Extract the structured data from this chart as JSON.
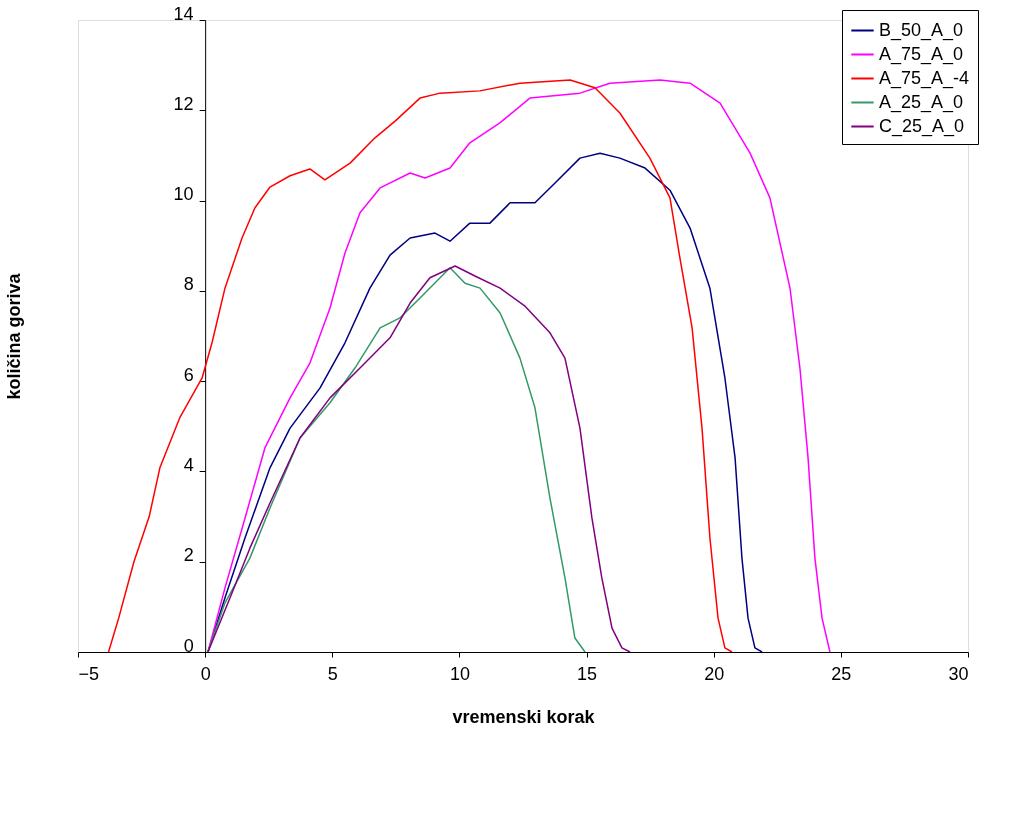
{
  "chart_data": {
    "type": "line",
    "xlabel": "vremenski korak",
    "ylabel": "količina goriva",
    "xlim": [
      -5,
      30
    ],
    "xticks": [
      -5,
      0,
      5,
      10,
      15,
      20,
      25,
      30
    ],
    "ylim": [
      0,
      14
    ],
    "yticks": [
      0,
      2,
      4,
      6,
      8,
      10,
      12,
      14
    ],
    "grid": false,
    "legend": "top right",
    "marker": "none",
    "line_style": "solid",
    "series": [
      {
        "name": "B_50_A_0",
        "color": "#000080",
        "x": [
          0.11,
          0.78,
          1.57,
          2.55,
          3.34,
          4.52,
          5.5,
          6.48,
          7.27,
          8.06,
          9.04,
          9.63,
          10.41,
          11.2,
          11.99,
          12.97,
          13.76,
          14.74,
          15.53,
          16.31,
          17.3,
          18.28,
          19.07,
          19.85,
          20.44,
          20.84,
          21.11,
          21.35,
          21.62,
          21.9
        ],
        "values": [
          0,
          1.2,
          2.53,
          4.08,
          4.96,
          5.85,
          6.85,
          8.06,
          8.79,
          9.17,
          9.28,
          9.1,
          9.5,
          9.5,
          9.95,
          9.95,
          10.39,
          10.94,
          11.05,
          10.94,
          10.72,
          10.23,
          9.39,
          8.06,
          6.07,
          4.3,
          2.08,
          0.75,
          0.09,
          0
        ]
      },
      {
        "name": "A_75_A_0",
        "color": "#ff00ff",
        "x": [
          0.11,
          0.78,
          1.57,
          2.35,
          3.34,
          4.12,
          4.91,
          5.5,
          6.09,
          6.88,
          8.06,
          8.65,
          9.63,
          10.41,
          11.59,
          12.77,
          14.74,
          15.92,
          17.89,
          19.07,
          20.25,
          21.43,
          22.21,
          23.0,
          23.39,
          23.71,
          23.98,
          24.26,
          24.57
        ],
        "values": [
          0,
          1.42,
          2.97,
          4.52,
          5.63,
          6.4,
          7.62,
          8.84,
          9.73,
          10.28,
          10.61,
          10.5,
          10.72,
          11.28,
          11.72,
          12.27,
          12.38,
          12.6,
          12.67,
          12.6,
          12.16,
          11.05,
          10.06,
          8.06,
          6.29,
          4.3,
          2.08,
          0.75,
          0
        ]
      },
      {
        "name": "A_75_A_-4",
        "color": "#ff0000",
        "x": [
          -3.8,
          -3.4,
          -2.8,
          -2.2,
          -1.78,
          -0.99,
          -0.12,
          0.27,
          0.78,
          1.45,
          1.96,
          2.55,
          3.34,
          4.12,
          4.71,
          5.7,
          6.68,
          7.47,
          8.45,
          9.24,
          10.8,
          12.38,
          14.35,
          15.33,
          16.31,
          17.49,
          18.28,
          18.67,
          19.15,
          19.54,
          19.85,
          20.17,
          20.44,
          20.72
        ],
        "values": [
          0,
          0.75,
          2.0,
          3.0,
          4.08,
          5.2,
          6.07,
          6.85,
          8.06,
          9.17,
          9.84,
          10.3,
          10.55,
          10.7,
          10.46,
          10.83,
          11.39,
          11.76,
          12.27,
          12.38,
          12.43,
          12.6,
          12.67,
          12.5,
          11.94,
          10.94,
          10.06,
          8.73,
          7.18,
          4.96,
          2.53,
          0.75,
          0.09,
          0
        ]
      },
      {
        "name": "A_25_A_0",
        "color": "#339966",
        "x": [
          0.11,
          0.78,
          1.76,
          2.55,
          3.73,
          4.91,
          5.89,
          6.88,
          7.66,
          8.45,
          9.24,
          9.63,
          10.22,
          10.81,
          11.6,
          12.38,
          12.97,
          13.56,
          14.15,
          14.54,
          14.94
        ],
        "values": [
          0,
          1.09,
          2.08,
          3.19,
          4.74,
          5.52,
          6.29,
          7.18,
          7.4,
          7.84,
          8.29,
          8.51,
          8.17,
          8.06,
          7.51,
          6.51,
          5.41,
          3.41,
          1.64,
          0.31,
          0
        ]
      },
      {
        "name": "C_25_A_0",
        "color": "#800080",
        "x": [
          0.11,
          0.98,
          1.76,
          2.55,
          3.73,
          4.91,
          6.09,
          7.27,
          8.06,
          8.84,
          9.83,
          10.61,
          11.6,
          12.58,
          13.56,
          14.15,
          14.74,
          15.21,
          15.6,
          16.0,
          16.39,
          16.71
        ],
        "values": [
          0,
          1.2,
          2.3,
          3.3,
          4.74,
          5.63,
          6.29,
          6.96,
          7.73,
          8.29,
          8.55,
          8.33,
          8.06,
          7.66,
          7.07,
          6.51,
          4.96,
          2.97,
          1.64,
          0.53,
          0.09,
          0
        ]
      }
    ]
  }
}
